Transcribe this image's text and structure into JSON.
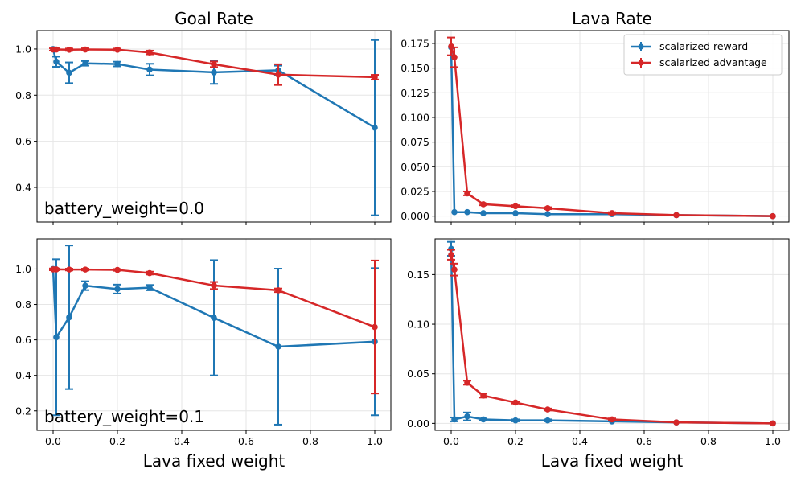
{
  "chart_data": {
    "type": "line",
    "figure_type": "errorbar-grid",
    "legend": {
      "placement": "top-right of top-right panel",
      "entries": [
        {
          "name": "scalarized reward",
          "color": "#1f77b4"
        },
        {
          "name": "scalarized advantage",
          "color": "#d62728"
        }
      ]
    },
    "x_label": "Lava fixed weight",
    "x": [
      0.0,
      0.01,
      0.05,
      0.1,
      0.2,
      0.3,
      0.5,
      0.7,
      1.0
    ],
    "x_ticks": [
      0.0,
      0.2,
      0.4,
      0.6,
      0.8,
      1.0
    ],
    "x_tick_labels": [
      "0.0",
      "0.2",
      "0.4",
      "0.6",
      "0.8",
      "1.0"
    ],
    "xlim": [
      -0.05,
      1.05
    ],
    "panels": [
      {
        "row": 0,
        "col": 0,
        "title": "Goal Rate",
        "annotation": "battery_weight=0.0",
        "ylim": [
          0.25,
          1.08
        ],
        "y_ticks": [
          0.4,
          0.6,
          0.8,
          1.0
        ],
        "y_tick_labels": [
          "0.4",
          "0.6",
          "0.8",
          "1.0"
        ],
        "series": [
          {
            "name": "scalarized reward",
            "color": "#1f77b4",
            "values": [
              1.0,
              0.945,
              0.897,
              0.938,
              0.935,
              0.911,
              0.899,
              0.908,
              0.659
            ],
            "errors": [
              0.0,
              0.022,
              0.045,
              0.01,
              0.01,
              0.025,
              0.05,
              0.02,
              0.38
            ]
          },
          {
            "name": "scalarized advantage",
            "color": "#d62728",
            "values": [
              0.998,
              0.998,
              0.997,
              0.998,
              0.997,
              0.985,
              0.934,
              0.889,
              0.878
            ],
            "errors": [
              0.005,
              0.005,
              0.005,
              0.005,
              0.005,
              0.008,
              0.012,
              0.045,
              0.01
            ]
          }
        ]
      },
      {
        "row": 0,
        "col": 1,
        "title": "Lava Rate",
        "annotation": "",
        "ylim": [
          -0.006,
          0.188
        ],
        "y_ticks": [
          0.0,
          0.025,
          0.05,
          0.075,
          0.1,
          0.125,
          0.15,
          0.175
        ],
        "y_tick_labels": [
          "0.000",
          "0.025",
          "0.050",
          "0.075",
          "0.100",
          "0.125",
          "0.150",
          "0.175"
        ],
        "series": [
          {
            "name": "scalarized reward",
            "color": "#1f77b4",
            "values": [
              0.171,
              0.004,
              0.004,
              0.003,
              0.003,
              0.002,
              0.002,
              0.001,
              0.0
            ],
            "errors": [
              0.0,
              0.0,
              0.0,
              0.0,
              0.0,
              0.0,
              0.0,
              0.0,
              0.0
            ]
          },
          {
            "name": "scalarized advantage",
            "color": "#d62728",
            "values": [
              0.172,
              0.161,
              0.023,
              0.012,
              0.01,
              0.008,
              0.003,
              0.001,
              0.0
            ],
            "errors": [
              0.009,
              0.01,
              0.002,
              0.001,
              0.001,
              0.001,
              0.001,
              0.0,
              0.0
            ]
          }
        ]
      },
      {
        "row": 1,
        "col": 0,
        "title": "",
        "annotation": "battery_weight=0.1",
        "ylim": [
          0.09,
          1.17
        ],
        "y_ticks": [
          0.2,
          0.4,
          0.6,
          0.8,
          1.0
        ],
        "y_tick_labels": [
          "0.2",
          "0.4",
          "0.6",
          "0.8",
          "1.0"
        ],
        "series": [
          {
            "name": "scalarized reward",
            "color": "#1f77b4",
            "values": [
              1.0,
              0.615,
              0.728,
              0.906,
              0.887,
              0.895,
              0.725,
              0.562,
              0.59
            ],
            "errors": [
              0.0,
              0.44,
              0.405,
              0.025,
              0.025,
              0.015,
              0.325,
              0.44,
              0.415
            ]
          },
          {
            "name": "scalarized advantage",
            "color": "#d62728",
            "values": [
              0.998,
              0.998,
              0.997,
              0.997,
              0.995,
              0.977,
              0.907,
              0.88,
              0.673
            ],
            "errors": [
              0.005,
              0.005,
              0.005,
              0.005,
              0.005,
              0.008,
              0.02,
              0.01,
              0.375
            ]
          }
        ]
      },
      {
        "row": 1,
        "col": 1,
        "title": "",
        "annotation": "",
        "ylim": [
          -0.007,
          0.186
        ],
        "y_ticks": [
          0.0,
          0.05,
          0.1,
          0.15
        ],
        "y_tick_labels": [
          "0.00",
          "0.05",
          "0.10",
          "0.15"
        ],
        "series": [
          {
            "name": "scalarized reward",
            "color": "#1f77b4",
            "values": [
              0.176,
              0.004,
              0.007,
              0.004,
              0.003,
              0.003,
              0.002,
              0.001,
              0.0
            ],
            "errors": [
              0.007,
              0.002,
              0.004,
              0.001,
              0.001,
              0.001,
              0.0,
              0.0,
              0.0
            ]
          },
          {
            "name": "scalarized advantage",
            "color": "#d62728",
            "values": [
              0.17,
              0.155,
              0.041,
              0.028,
              0.021,
              0.014,
              0.004,
              0.001,
              0.0
            ],
            "errors": [
              0.005,
              0.006,
              0.002,
              0.002,
              0.001,
              0.001,
              0.001,
              0.0,
              0.0
            ]
          }
        ]
      }
    ]
  }
}
